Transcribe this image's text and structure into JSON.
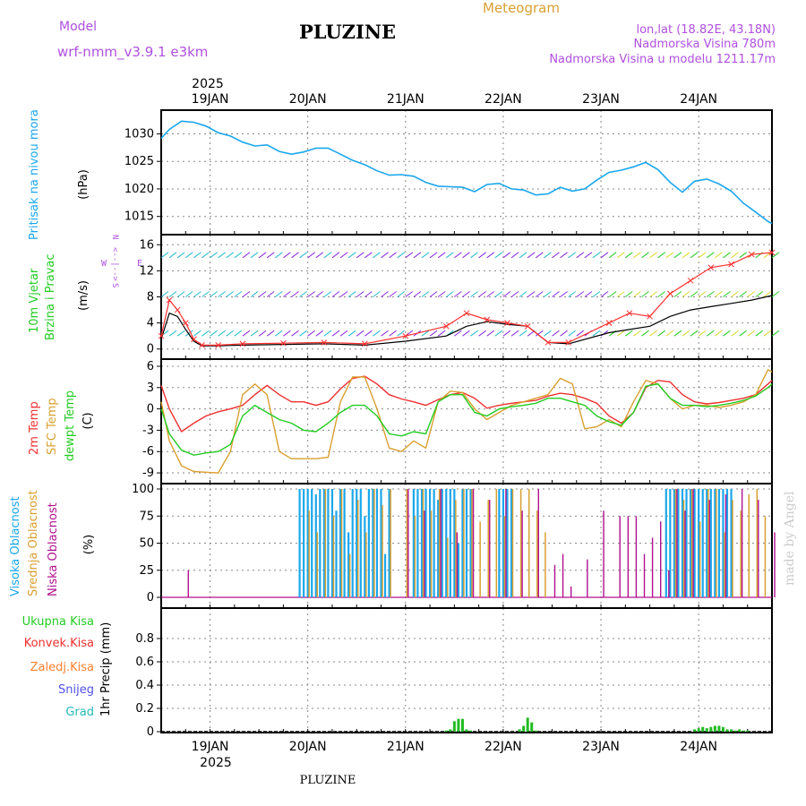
{
  "header": {
    "model_label": "Model",
    "model_name": "wrf-nmm_v3.9.1  e3km",
    "title": "PLUZINE",
    "subtitle": "Meteogram",
    "lonlat": "lon,lat (18.82E, 43.18N)",
    "altitude": "Nadmorska Visina 780m",
    "model_altitude": "Nadmorska Visina u modelu 1211.17m",
    "year_label": "2025",
    "footer_title": "PLUZINE",
    "watermark": "made by Angel"
  },
  "colors": {
    "pressure": "#1aa7ec",
    "wind_speed": "#000000",
    "gust": "#ff3030",
    "temp2m": "#ee3030",
    "sfc_temp": "#d9a030",
    "dewpt": "#22cc22",
    "high_cloud": "#1aa7ec",
    "mid_cloud": "#d9a030",
    "low_cloud": "#b0108f",
    "total_precip": "#22bb22",
    "conv_precip": "#ee3030",
    "frozen_precip": "#ff8030",
    "snow": "#5050ee",
    "hail": "#22bbbb"
  },
  "days": [
    "19JAN",
    "20JAN",
    "21JAN",
    "22JAN",
    "23JAN",
    "24JAN"
  ],
  "chart_data": [
    {
      "type": "line",
      "panel": "pressure",
      "label": "Pritisak na nivou mora",
      "unit": "(hPa)",
      "ylim": [
        1013,
        1033
      ],
      "yticks": [
        "1015",
        "1020",
        "1025",
        "1030"
      ],
      "x": [
        0,
        2,
        5,
        8,
        11,
        14,
        17,
        20,
        23,
        26,
        29,
        32,
        35,
        38,
        41,
        44,
        47,
        50,
        53,
        56,
        59,
        62,
        65,
        68,
        71,
        74,
        77,
        80,
        83,
        86,
        89,
        92,
        95,
        98,
        101,
        104,
        107,
        110,
        113,
        116,
        119,
        122,
        125,
        128,
        131,
        134,
        137,
        140,
        143,
        146,
        149,
        150
      ],
      "values": [
        1029.2,
        1030.8,
        1032.3,
        1032.1,
        1031.4,
        1030.2,
        1029.6,
        1028.5,
        1027.8,
        1028.0,
        1026.8,
        1026.3,
        1026.7,
        1027.4,
        1027.4,
        1026.3,
        1025.2,
        1024.4,
        1023.3,
        1022.5,
        1022.6,
        1022.3,
        1021.2,
        1020.5,
        1020.4,
        1020.3,
        1019.5,
        1020.8,
        1021.0,
        1020.0,
        1019.8,
        1018.9,
        1019.1,
        1020.3,
        1019.6,
        1020.0,
        1021.6,
        1023.0,
        1023.4,
        1024.0,
        1024.8,
        1023.5,
        1021.2,
        1019.4,
        1021.4,
        1021.8,
        1020.9,
        1019.6,
        1017.4,
        1015.8,
        1014.1,
        1013.7
      ]
    },
    {
      "type": "line",
      "panel": "wind",
      "label": "10m Vjetar Brzina i Pravac",
      "unit": "(m/s)",
      "ylim": [
        -1,
        17
      ],
      "yticks": [
        "0",
        "4",
        "8",
        "12",
        "16"
      ],
      "direction_legend": [
        "N",
        "<--|-->",
        "S",
        "W",
        "E"
      ],
      "series": [
        {
          "name": "speed",
          "x": [
            0,
            2,
            4,
            6,
            8,
            10,
            14,
            20,
            30,
            40,
            50,
            60,
            70,
            75,
            80,
            85,
            90,
            95,
            100,
            110,
            115,
            120,
            125,
            130,
            135,
            140,
            145,
            150
          ],
          "values": [
            1.5,
            5.5,
            5.0,
            3.0,
            1.2,
            0.5,
            0.5,
            0.6,
            0.7,
            0.8,
            0.6,
            1.2,
            2.0,
            3.5,
            4.2,
            3.8,
            3.5,
            1.0,
            0.8,
            2.5,
            3.0,
            3.5,
            5.0,
            6.0,
            6.5,
            7.0,
            7.5,
            8.2
          ]
        },
        {
          "name": "gust",
          "x": [
            0,
            2,
            4,
            6,
            8,
            10,
            14,
            20,
            30,
            40,
            50,
            60,
            70,
            75,
            80,
            85,
            90,
            95,
            100,
            110,
            115,
            120,
            125,
            130,
            135,
            140,
            145,
            150
          ],
          "values": [
            2.0,
            7.5,
            6.0,
            4.0,
            1.5,
            0.6,
            0.6,
            0.8,
            0.9,
            1.0,
            0.8,
            2.0,
            3.5,
            5.5,
            4.5,
            4.0,
            3.5,
            1.0,
            1.0,
            4.0,
            5.5,
            5.0,
            8.5,
            10.5,
            12.5,
            13.0,
            14.5,
            14.8
          ]
        }
      ],
      "barb_rows": [
        2,
        8,
        14
      ]
    },
    {
      "type": "line",
      "panel": "temperature",
      "labels": [
        "2m Temp",
        "SFC Temp",
        "dewpt Temp"
      ],
      "unit": "(C)",
      "ylim": [
        -10,
        6.5
      ],
      "yticks": [
        "-9",
        "-6",
        "-3",
        "0",
        "3",
        "6"
      ],
      "series": [
        {
          "name": "2m Temp",
          "x": [
            0,
            2,
            5,
            8,
            11,
            14,
            17,
            20,
            23,
            26,
            29,
            32,
            35,
            38,
            41,
            44,
            47,
            50,
            53,
            56,
            59,
            62,
            65,
            68,
            71,
            74,
            77,
            80,
            83,
            86,
            89,
            92,
            95,
            98,
            101,
            104,
            107,
            110,
            113,
            116,
            119,
            122,
            125,
            128,
            131,
            134,
            137,
            140,
            143,
            146,
            149,
            150
          ],
          "values": [
            3.3,
            0.0,
            -3.2,
            -2.0,
            -1.0,
            -0.4,
            0.0,
            0.5,
            2.0,
            3.3,
            2.0,
            1.0,
            1.0,
            0.5,
            1.0,
            2.8,
            4.3,
            4.6,
            3.5,
            2.0,
            1.4,
            1.0,
            0.5,
            1.3,
            2.0,
            2.3,
            1.5,
            0.1,
            0.5,
            0.8,
            1.0,
            1.2,
            1.8,
            2.2,
            2.0,
            1.5,
            0.8,
            -1.0,
            -2.0,
            -0.5,
            3.0,
            4.0,
            3.8,
            2.0,
            1.0,
            0.7,
            0.9,
            1.2,
            1.5,
            2.0,
            3.5,
            4.0
          ]
        },
        {
          "name": "SFC Temp",
          "x": [
            0,
            2,
            5,
            8,
            11,
            14,
            17,
            20,
            23,
            26,
            29,
            32,
            35,
            38,
            41,
            44,
            47,
            50,
            53,
            56,
            59,
            62,
            65,
            68,
            71,
            74,
            77,
            80,
            83,
            86,
            89,
            92,
            95,
            98,
            101,
            104,
            107,
            110,
            113,
            116,
            119,
            122,
            125,
            128,
            131,
            134,
            137,
            140,
            143,
            146,
            149,
            150
          ],
          "values": [
            1.0,
            -4.5,
            -8.0,
            -8.8,
            -8.9,
            -9.0,
            -6.0,
            2.0,
            3.5,
            2.0,
            -6.0,
            -7.0,
            -7.0,
            -7.0,
            -6.8,
            1.0,
            4.5,
            4.5,
            0.0,
            -5.5,
            -6.0,
            -4.5,
            -5.5,
            1.0,
            2.5,
            2.3,
            0.0,
            -1.5,
            -0.5,
            0.5,
            1.0,
            1.5,
            2.0,
            4.3,
            3.5,
            -2.8,
            -2.5,
            -1.5,
            -2.5,
            1.0,
            4.0,
            3.5,
            1.5,
            0.0,
            0.5,
            0.5,
            0.2,
            0.5,
            1.0,
            2.0,
            5.5,
            5.2
          ]
        },
        {
          "name": "dewpt Temp",
          "x": [
            0,
            2,
            5,
            8,
            11,
            14,
            17,
            20,
            23,
            26,
            29,
            32,
            35,
            38,
            41,
            44,
            47,
            50,
            53,
            56,
            59,
            62,
            65,
            68,
            71,
            74,
            77,
            80,
            83,
            86,
            89,
            92,
            95,
            98,
            101,
            104,
            107,
            110,
            113,
            116,
            119,
            122,
            125,
            128,
            131,
            134,
            137,
            140,
            143,
            146,
            149,
            150
          ],
          "values": [
            0.0,
            -3.5,
            -5.8,
            -6.5,
            -6.2,
            -6.0,
            -5.0,
            -1.0,
            0.5,
            -0.5,
            -1.5,
            -2.0,
            -3.0,
            -3.2,
            -2.0,
            -0.5,
            0.5,
            0.5,
            -1.0,
            -3.5,
            -3.8,
            -3.2,
            -3.5,
            1.0,
            2.0,
            2.0,
            -0.5,
            -1.0,
            0.0,
            0.3,
            0.5,
            0.8,
            1.5,
            1.5,
            1.0,
            0.5,
            -1.0,
            -1.8,
            -2.3,
            -0.5,
            3.2,
            3.5,
            1.5,
            0.5,
            0.5,
            0.3,
            0.5,
            0.8,
            1.2,
            1.8,
            3.0,
            3.5
          ]
        }
      ]
    },
    {
      "type": "bar",
      "panel": "clouds",
      "labels": [
        "Visoka Oblacnost",
        "Srednja Oblacnost",
        "Niska Oblacnost"
      ],
      "unit": "(%)",
      "ylim": [
        0,
        100
      ],
      "yticks": [
        "0",
        "25",
        "50",
        "75",
        "100"
      ],
      "series": [
        {
          "name": "Visoka Oblacnost",
          "x": [
            34,
            35,
            36,
            37,
            38,
            39,
            40,
            41,
            42,
            43,
            44,
            45,
            46,
            47,
            48,
            49,
            50,
            51,
            52,
            53,
            54,
            55,
            56,
            62,
            63,
            64,
            65,
            66,
            67,
            68,
            69,
            70,
            71,
            72,
            73,
            74,
            75,
            76,
            83,
            84,
            85,
            86,
            124,
            125,
            126,
            127,
            128,
            129,
            130,
            131,
            132,
            133,
            134,
            135,
            136,
            137,
            138,
            139,
            140
          ],
          "values": [
            100,
            100,
            100,
            100,
            95,
            100,
            100,
            100,
            100,
            80,
            100,
            100,
            60,
            100,
            100,
            100,
            75,
            100,
            100,
            100,
            100,
            40,
            100,
            100,
            100,
            100,
            100,
            100,
            100,
            90,
            100,
            100,
            100,
            100,
            50,
            100,
            100,
            100,
            100,
            100,
            100,
            100,
            100,
            100,
            100,
            100,
            100,
            100,
            100,
            100,
            100,
            100,
            100,
            100,
            100,
            100,
            100,
            100,
            100
          ]
        },
        {
          "name": "Srednja Oblacnost",
          "x": [
            36,
            38,
            40,
            42,
            44,
            46,
            48,
            50,
            52,
            54,
            56,
            60,
            62,
            64,
            66,
            68,
            70,
            72,
            74,
            76,
            78,
            80,
            82,
            84,
            86,
            88,
            90,
            92,
            94,
            126,
            128,
            130,
            132,
            134,
            136,
            138,
            140,
            142,
            144,
            146,
            148
          ],
          "values": [
            80,
            60,
            100,
            75,
            100,
            40,
            90,
            60,
            100,
            85,
            100,
            100,
            75,
            100,
            80,
            100,
            55,
            90,
            100,
            100,
            70,
            90,
            100,
            75,
            100,
            100,
            100,
            80,
            60,
            100,
            90,
            100,
            70,
            100,
            100,
            60,
            90,
            80,
            95,
            100,
            75
          ]
        },
        {
          "name": "Niska Oblacnost",
          "x": [
            6,
            60,
            64,
            68,
            72,
            76,
            80,
            84,
            88,
            92,
            96,
            98,
            100,
            104,
            108,
            112,
            114,
            116,
            118,
            120,
            122,
            124,
            126,
            128,
            130,
            134,
            138,
            142,
            146,
            150
          ],
          "values": [
            25,
            100,
            80,
            100,
            60,
            100,
            90,
            100,
            80,
            100,
            30,
            40,
            10,
            35,
            80,
            75,
            75,
            75,
            40,
            55,
            70,
            25,
            100,
            80,
            100,
            90,
            95,
            100,
            90,
            60
          ]
        }
      ]
    },
    {
      "type": "bar",
      "panel": "precipitation",
      "labels": [
        "Ukupna Kisa",
        "Konvek.Kisa",
        "Zaledj.Kisa",
        "Snijeg",
        "Grad"
      ],
      "unit": "1hr Precip (mm)",
      "ylim": [
        0,
        1.0
      ],
      "yticks": [
        "0",
        "0.2",
        "0.4",
        "0.6",
        "0.8"
      ],
      "series": [
        {
          "name": "Ukupna Kisa",
          "x": [
            70,
            71,
            72,
            73,
            74,
            75,
            76,
            88,
            89,
            90,
            91,
            92,
            131,
            132,
            133,
            134,
            135,
            136,
            137,
            138,
            139,
            140,
            141,
            142,
            143,
            144
          ],
          "values": [
            0.01,
            0.02,
            0.09,
            0.11,
            0.11,
            0.02,
            0.01,
            0.02,
            0.05,
            0.12,
            0.08,
            0.01,
            0.02,
            0.03,
            0.04,
            0.03,
            0.04,
            0.05,
            0.05,
            0.04,
            0.02,
            0.02,
            0.01,
            0.02,
            0.01,
            0.01
          ]
        }
      ]
    }
  ]
}
